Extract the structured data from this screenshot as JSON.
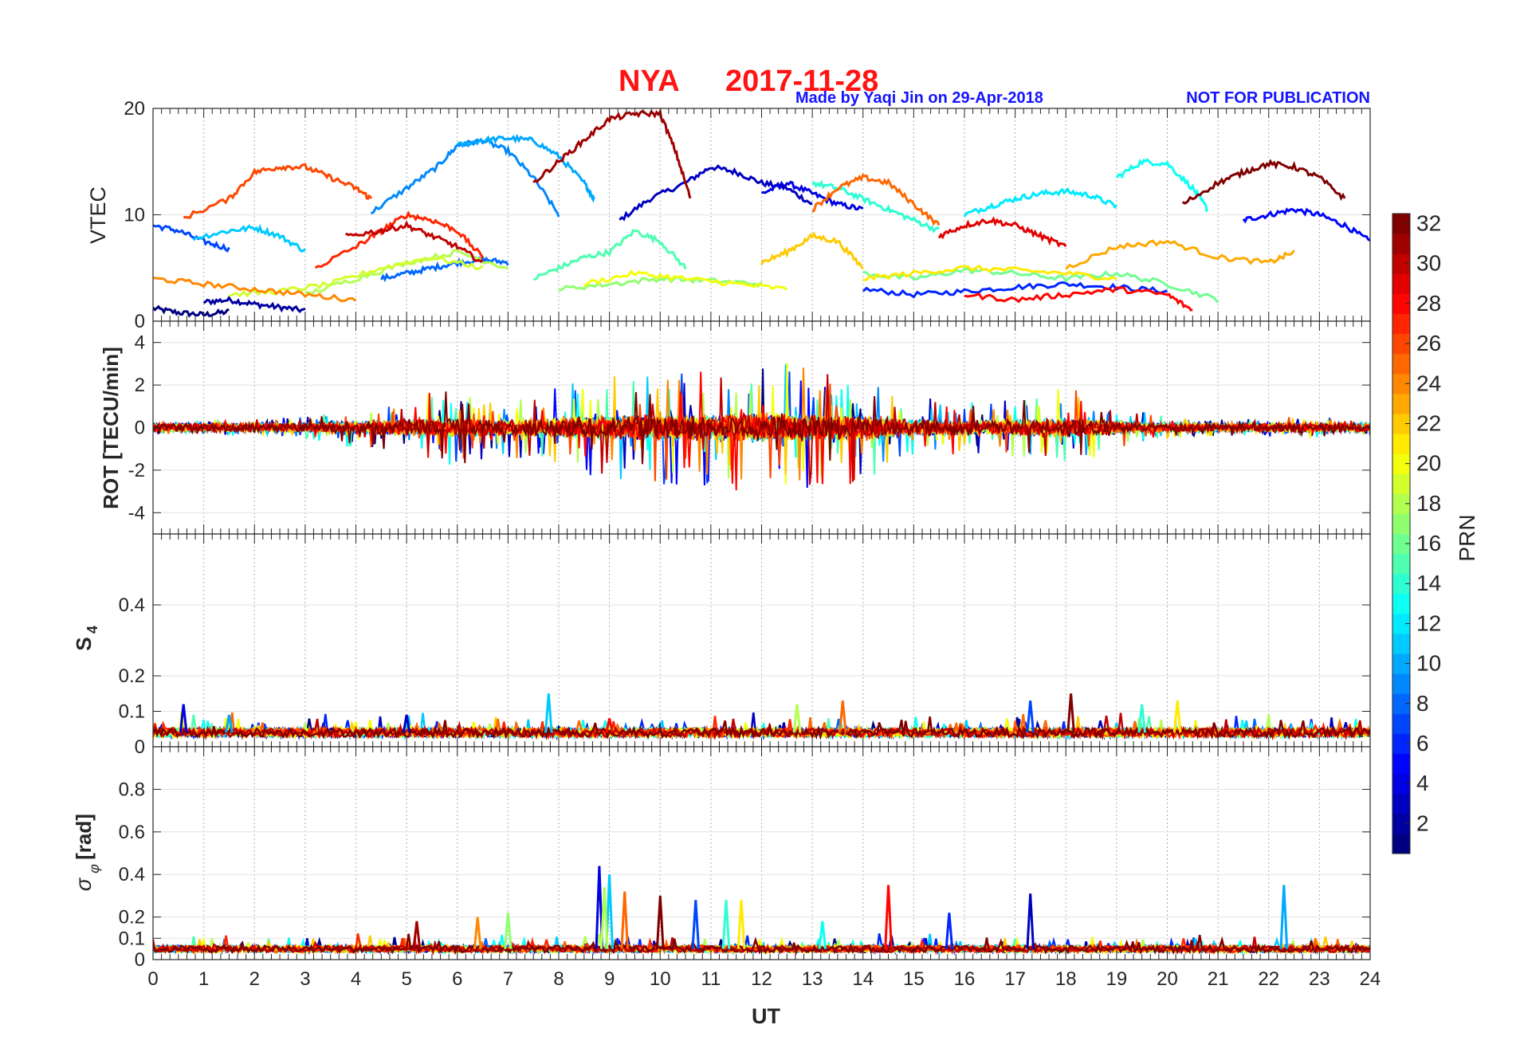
{
  "figure": {
    "title_station": "NYA",
    "title_date": "2017-11-28",
    "credit": "Made by Yaqi Jin on 29-Apr-2018",
    "notice": "NOT FOR PUBLICATION"
  },
  "chart_data": [
    {
      "type": "line",
      "panel": "vtec",
      "ylabel": "VTEC",
      "xlabel": "",
      "xlim": [
        0,
        24
      ],
      "ylim": [
        0,
        20
      ],
      "yticks": [
        0,
        10,
        20
      ],
      "ytick_labels": [
        "0",
        "10",
        "20"
      ],
      "grid": true,
      "series": [
        {
          "prn": 1,
          "x": [
            0.0,
            0.5,
            1.0,
            1.5
          ],
          "y": [
            1.2,
            0.8,
            0.6,
            0.9
          ]
        },
        {
          "prn": 2,
          "x": [
            1.0,
            1.5,
            2.0,
            2.5,
            3.0
          ],
          "y": [
            1.8,
            2.0,
            1.6,
            1.3,
            1.0
          ]
        },
        {
          "prn": 3,
          "x": [
            9.2,
            9.8,
            10.5,
            11.0,
            11.5,
            12.0,
            12.5,
            13.0
          ],
          "y": [
            9.5,
            11.5,
            13.0,
            14.5,
            14.0,
            13.0,
            12.5,
            11.0
          ]
        },
        {
          "prn": 4,
          "x": [
            12.0,
            12.5,
            13.0,
            13.5,
            14.0
          ],
          "y": [
            12.0,
            13.0,
            12.0,
            11.0,
            10.5
          ]
        },
        {
          "prn": 5,
          "x": [
            21.5,
            22.0,
            22.5,
            23.0,
            23.5,
            24.0
          ],
          "y": [
            9.5,
            10.0,
            10.5,
            10.0,
            9.0,
            7.5
          ]
        },
        {
          "prn": 6,
          "x": [
            14.0,
            15.0,
            16.0,
            17.0,
            18.0,
            19.0,
            20.0
          ],
          "y": [
            3.0,
            2.5,
            2.8,
            3.2,
            3.5,
            3.2,
            2.8
          ]
        },
        {
          "prn": 7,
          "x": [
            0.0,
            0.5,
            1.0,
            1.5
          ],
          "y": [
            9.0,
            8.5,
            7.5,
            6.8
          ]
        },
        {
          "prn": 8,
          "x": [
            4.5,
            5.0,
            5.5,
            6.0,
            6.5,
            7.0
          ],
          "y": [
            4.0,
            4.5,
            5.0,
            5.5,
            5.8,
            5.5
          ]
        },
        {
          "prn": 9,
          "x": [
            4.3,
            5.0,
            5.6,
            6.0,
            6.5,
            7.0,
            7.5,
            8.0
          ],
          "y": [
            10.2,
            12.5,
            14.5,
            16.5,
            17.0,
            16.0,
            13.5,
            10.0
          ]
        },
        {
          "prn": 10,
          "x": [
            6.0,
            6.5,
            7.0,
            7.5,
            8.0,
            8.5,
            8.7
          ],
          "y": [
            16.5,
            17.0,
            17.2,
            17.0,
            15.5,
            13.0,
            11.5
          ]
        },
        {
          "prn": 11,
          "x": [
            0.8,
            1.5,
            2.0,
            2.5,
            3.0
          ],
          "y": [
            7.8,
            8.5,
            8.8,
            8.0,
            6.6
          ]
        },
        {
          "prn": 12,
          "x": [
            16.0,
            16.5,
            17.0,
            17.5,
            18.0,
            18.5,
            19.0
          ],
          "y": [
            10.0,
            10.8,
            11.5,
            12.0,
            12.2,
            11.8,
            10.8
          ]
        },
        {
          "prn": 13,
          "x": [
            19.0,
            19.5,
            20.0,
            20.5,
            20.8
          ],
          "y": [
            13.5,
            15.0,
            14.8,
            12.5,
            10.5
          ]
        },
        {
          "prn": 14,
          "x": [
            13.0,
            13.5,
            14.0,
            14.5,
            15.0,
            15.5
          ],
          "y": [
            13.0,
            12.5,
            11.5,
            10.5,
            9.5,
            8.5
          ]
        },
        {
          "prn": 15,
          "x": [
            7.5,
            8.0,
            8.5,
            9.0,
            9.5,
            10.0,
            10.5
          ],
          "y": [
            4.0,
            5.0,
            6.0,
            6.5,
            8.5,
            7.5,
            5.0
          ]
        },
        {
          "prn": 16,
          "x": [
            14.0,
            15.0,
            16.0,
            17.0,
            18.0,
            19.0,
            20.0,
            21.0
          ],
          "y": [
            4.5,
            4.0,
            4.8,
            4.5,
            4.0,
            4.5,
            3.5,
            2.0
          ]
        },
        {
          "prn": 17,
          "x": [
            8.0,
            9.0,
            10.0,
            11.0,
            12.0
          ],
          "y": [
            3.0,
            3.5,
            4.0,
            3.8,
            3.5
          ]
        },
        {
          "prn": 18,
          "x": [
            3.0,
            4.0,
            5.0,
            6.0,
            7.0
          ],
          "y": [
            2.5,
            4.0,
            5.5,
            6.5,
            5.0
          ]
        },
        {
          "prn": 19,
          "x": [
            1.5,
            2.5,
            3.5,
            4.5,
            5.5,
            6.5
          ],
          "y": [
            2.5,
            2.8,
            3.5,
            5.0,
            6.0,
            5.0
          ]
        },
        {
          "prn": 20,
          "x": [
            8.5,
            9.5,
            10.5,
            11.5,
            12.5
          ],
          "y": [
            3.5,
            4.5,
            4.0,
            3.5,
            3.0
          ]
        },
        {
          "prn": 21,
          "x": [
            14.0,
            15.0,
            16.0,
            17.0,
            18.0,
            19.0
          ],
          "y": [
            4.0,
            4.5,
            5.0,
            4.8,
            4.5,
            4.0
          ]
        },
        {
          "prn": 22,
          "x": [
            12.0,
            12.5,
            13.0,
            13.5,
            14.0
          ],
          "y": [
            5.5,
            6.5,
            8.0,
            7.5,
            5.0
          ]
        },
        {
          "prn": 23,
          "x": [
            18.0,
            19.0,
            20.0,
            21.0,
            22.0,
            22.5
          ],
          "y": [
            5.0,
            7.0,
            7.5,
            6.0,
            5.5,
            6.5
          ]
        },
        {
          "prn": 24,
          "x": [
            0.0,
            1.0,
            2.0,
            3.0,
            4.0
          ],
          "y": [
            4.0,
            3.5,
            3.0,
            2.5,
            2.0
          ]
        },
        {
          "prn": 25,
          "x": [
            13.0,
            13.5,
            14.0,
            14.5,
            15.0,
            15.5
          ],
          "y": [
            10.5,
            12.5,
            13.5,
            13.0,
            11.0,
            9.0
          ]
        },
        {
          "prn": 26,
          "x": [
            0.6,
            1.5,
            2.0,
            2.5,
            3.0,
            3.5,
            4.0,
            4.3
          ],
          "y": [
            9.7,
            11.5,
            14.0,
            14.5,
            14.5,
            13.5,
            12.5,
            11.5
          ]
        },
        {
          "prn": 27,
          "x": [
            3.2,
            4.0,
            4.5,
            5.0,
            5.5,
            6.0,
            6.5
          ],
          "y": [
            5.0,
            7.0,
            8.5,
            10.0,
            9.5,
            8.5,
            6.0
          ]
        },
        {
          "prn": 28,
          "x": [
            16.0,
            17.0,
            18.0,
            19.0,
            20.0,
            20.5
          ],
          "y": [
            2.5,
            2.0,
            2.5,
            3.0,
            2.5,
            1.0
          ]
        },
        {
          "prn": 29,
          "x": [
            15.5,
            16.0,
            16.5,
            17.0,
            17.5,
            18.0
          ],
          "y": [
            8.0,
            9.0,
            9.5,
            9.0,
            8.0,
            7.0
          ]
        },
        {
          "prn": 30,
          "x": [
            3.8,
            4.5,
            5.0,
            5.5,
            6.0,
            6.5
          ],
          "y": [
            8.0,
            8.5,
            9.0,
            8.0,
            7.0,
            5.5
          ]
        },
        {
          "prn": 31,
          "x": [
            7.5,
            8.0,
            8.5,
            9.0,
            9.5,
            10.0,
            10.3,
            10.6
          ],
          "y": [
            13.0,
            15.0,
            17.0,
            19.0,
            19.5,
            19.5,
            16.0,
            11.5
          ]
        },
        {
          "prn": 32,
          "x": [
            20.3,
            21.0,
            21.5,
            22.0,
            22.5,
            23.0,
            23.5
          ],
          "y": [
            11.0,
            13.0,
            14.0,
            14.8,
            14.5,
            13.5,
            11.5
          ]
        }
      ]
    },
    {
      "type": "line",
      "panel": "rot",
      "ylabel": "ROT [TECU/min]",
      "xlabel": "",
      "xlim": [
        0,
        24
      ],
      "ylim": [
        -5,
        5
      ],
      "yticks": [
        -4,
        -2,
        0,
        2,
        4
      ],
      "ytick_labels": [
        "-4",
        "-2",
        "0",
        "2",
        "4"
      ],
      "grid": true,
      "envelope_hours": [
        0,
        2,
        3,
        4,
        5,
        6,
        7,
        8,
        9,
        10,
        11,
        12,
        13,
        14,
        15,
        16,
        17,
        18,
        19,
        20,
        21,
        22,
        23,
        24
      ],
      "envelope_max_abs": [
        0.3,
        0.4,
        0.5,
        1.0,
        1.5,
        1.8,
        1.5,
        2.0,
        2.5,
        2.8,
        2.8,
        3.3,
        2.8,
        2.7,
        1.5,
        1.2,
        1.5,
        2.0,
        1.0,
        0.5,
        0.4,
        0.5,
        0.5,
        0.4
      ]
    },
    {
      "type": "line",
      "panel": "s4",
      "ylabel": "S4",
      "xlabel": "",
      "xlim": [
        0,
        24
      ],
      "ylim": [
        0,
        0.6
      ],
      "yticks": [
        0,
        0.1,
        0.2,
        0.4
      ],
      "ytick_labels": [
        "0",
        "0.1",
        "0.2",
        "0.4"
      ],
      "grid": true,
      "baseline": 0.04,
      "spikes": [
        [
          0.6,
          0.12
        ],
        [
          7.8,
          0.15
        ],
        [
          12.7,
          0.12
        ],
        [
          13.6,
          0.13
        ],
        [
          18.1,
          0.15
        ],
        [
          17.3,
          0.13
        ],
        [
          19.5,
          0.12
        ],
        [
          20.2,
          0.13
        ],
        [
          9.0,
          0.08
        ],
        [
          5.0,
          0.09
        ],
        [
          1.5,
          0.09
        ]
      ]
    },
    {
      "type": "line",
      "panel": "sigma_phi",
      "ylabel": "σφ [rad]",
      "xlabel": "UT",
      "xlim": [
        0,
        24
      ],
      "ylim": [
        0,
        1
      ],
      "yticks": [
        0,
        0.1,
        0.2,
        0.4,
        0.6,
        0.8
      ],
      "ytick_labels": [
        "0",
        "0.1",
        "0.2",
        "0.4",
        "0.6",
        "0.8"
      ],
      "grid": true,
      "baseline": 0.05,
      "spikes": [
        [
          8.8,
          0.44
        ],
        [
          9.0,
          0.4
        ],
        [
          8.9,
          0.34
        ],
        [
          9.3,
          0.32
        ],
        [
          10.0,
          0.3
        ],
        [
          10.7,
          0.28
        ],
        [
          11.3,
          0.28
        ],
        [
          11.6,
          0.28
        ],
        [
          14.5,
          0.35
        ],
        [
          17.3,
          0.31
        ],
        [
          22.3,
          0.35
        ],
        [
          7.0,
          0.22
        ],
        [
          6.4,
          0.2
        ],
        [
          5.2,
          0.18
        ],
        [
          15.7,
          0.22
        ],
        [
          13.2,
          0.18
        ]
      ]
    }
  ],
  "x_axis": {
    "ticks": [
      "0",
      "1",
      "2",
      "3",
      "4",
      "5",
      "6",
      "7",
      "8",
      "9",
      "10",
      "11",
      "12",
      "13",
      "14",
      "15",
      "16",
      "17",
      "18",
      "19",
      "20",
      "21",
      "22",
      "23",
      "24"
    ],
    "label": "UT"
  },
  "colorbar": {
    "label": "PRN",
    "range": [
      1,
      32
    ],
    "ticks": [
      "2",
      "4",
      "6",
      "8",
      "10",
      "12",
      "14",
      "16",
      "18",
      "20",
      "22",
      "24",
      "26",
      "28",
      "30",
      "32"
    ],
    "colormap": "jet"
  }
}
